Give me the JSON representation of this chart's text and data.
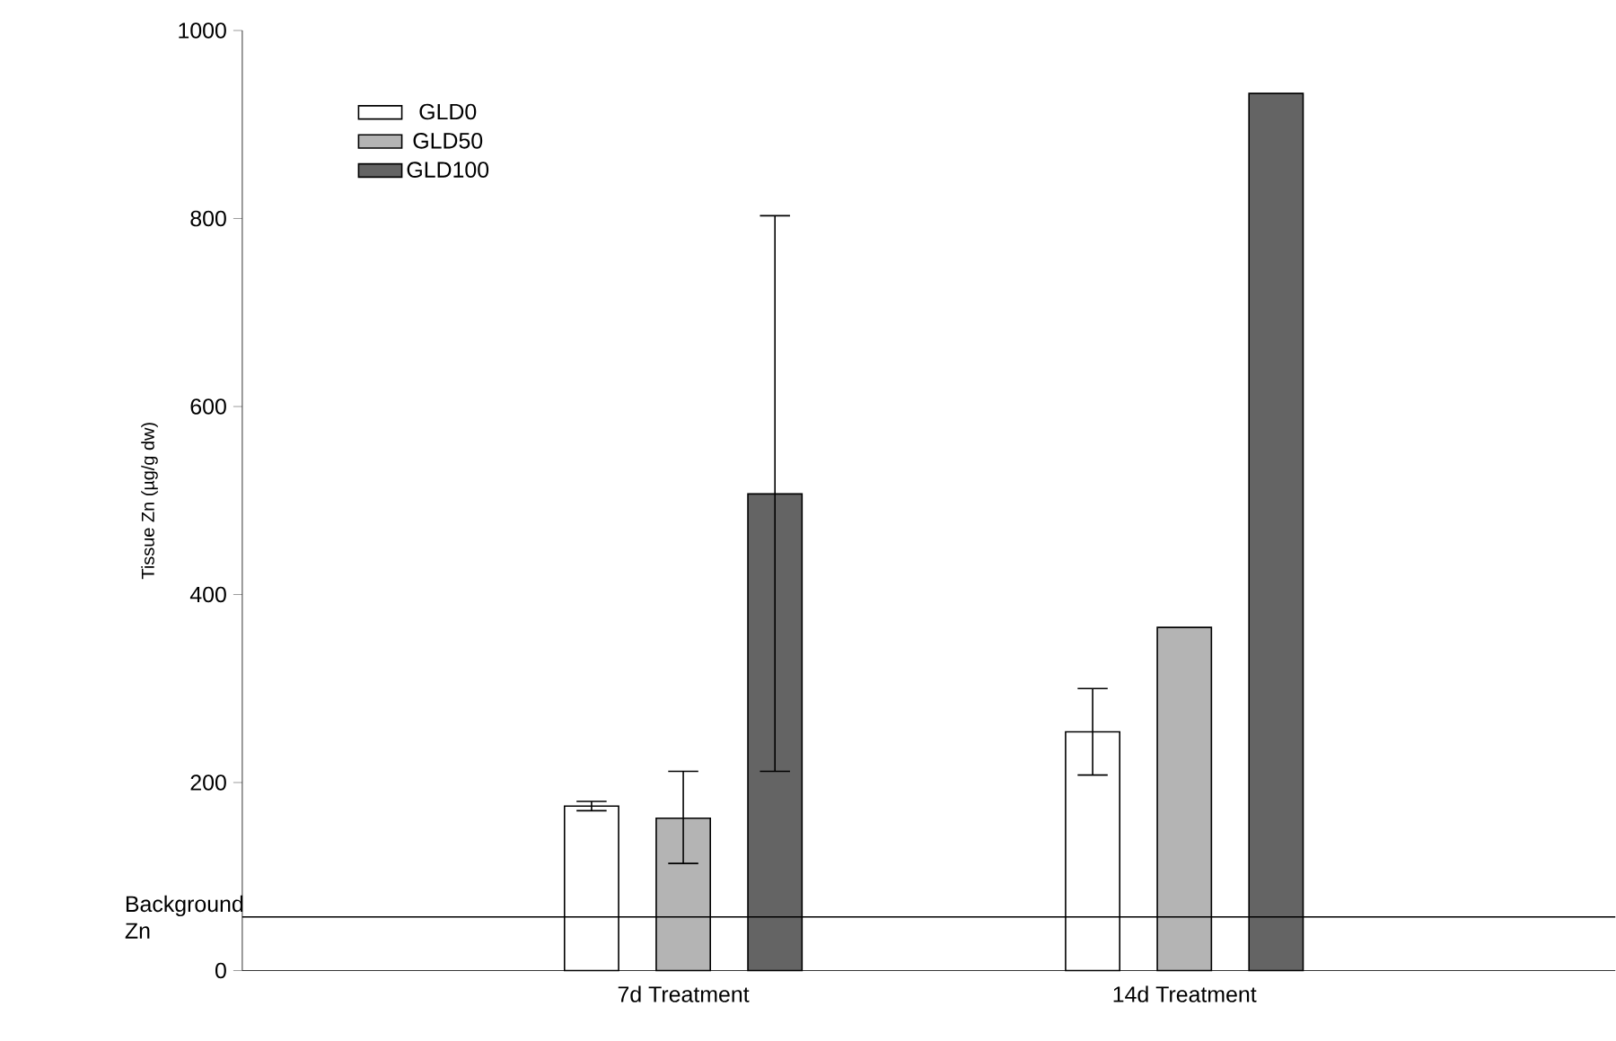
{
  "chart_data": {
    "type": "bar",
    "ylabel": "Tissue Zn (µg/g dw)",
    "categories": [
      "7d Treatment",
      "14d Treatment"
    ],
    "series": [
      {
        "name": "GLD0",
        "color": "#ffffff",
        "values": [
          175,
          254
        ],
        "errors": [
          [
            170,
            180
          ],
          [
            208,
            300
          ]
        ]
      },
      {
        "name": "GLD50",
        "color": "#b4b4b4",
        "values": [
          162,
          365
        ],
        "errors": [
          [
            114,
            212
          ],
          null
        ]
      },
      {
        "name": "GLD100",
        "color": "#646464",
        "values": [
          507,
          933
        ],
        "errors": [
          [
            212,
            803
          ],
          null
        ]
      }
    ],
    "ylim": [
      0,
      1000
    ],
    "yticks": [
      0,
      200,
      400,
      600,
      800,
      1000
    ],
    "grid": false,
    "legend": "top left",
    "ref_lines": [
      {
        "axis": "y",
        "value": 57,
        "label": "Background Zn",
        "color": "#000000"
      }
    ]
  }
}
